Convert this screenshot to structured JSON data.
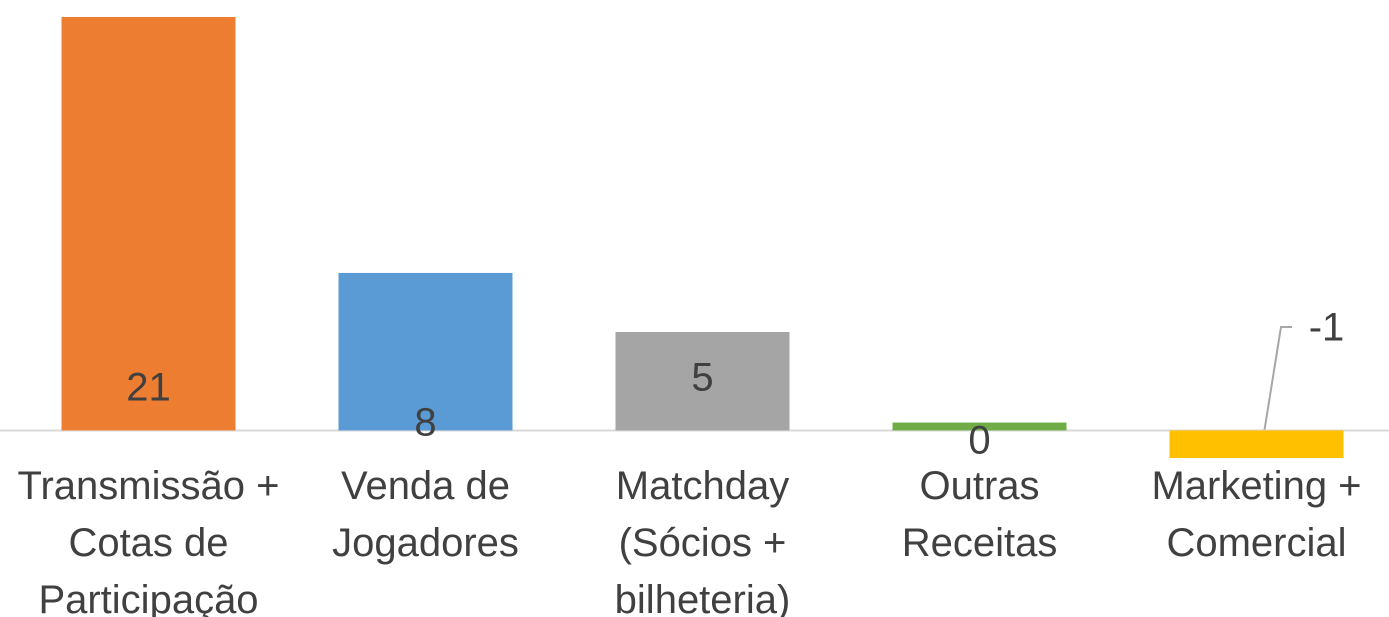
{
  "chart_data": {
    "type": "bar",
    "categories": [
      "Transmissão + Cotas de Participação",
      "Venda de Jogadores",
      "Matchday (Sócios + bilheteria)",
      "Outras Receitas",
      "Marketing + Comercial"
    ],
    "values": [
      21,
      8,
      5,
      0.4,
      -1.4
    ],
    "value_labels": [
      "21",
      "8",
      "5",
      "0",
      "-1"
    ],
    "colors": [
      "#ED7D31",
      "#5B9BD5",
      "#A5A5A5",
      "#70AD47",
      "#FFC000"
    ]
  }
}
